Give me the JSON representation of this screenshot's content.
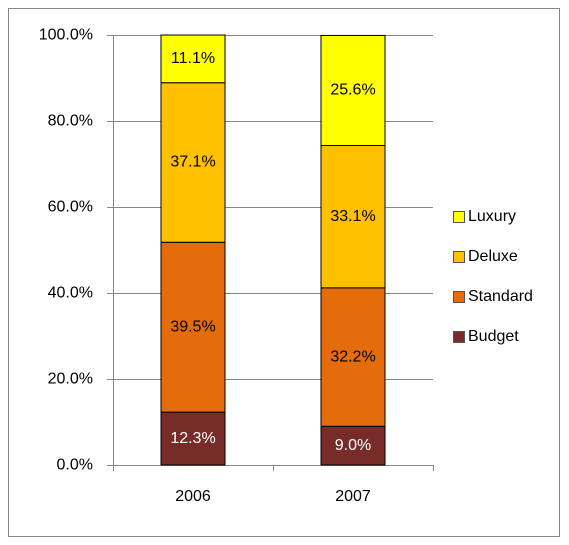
{
  "chart_data": {
    "type": "stacked-bar",
    "categories": [
      "2006",
      "2007"
    ],
    "series": [
      {
        "name": "Budget",
        "color": "#772c2a",
        "label_color": "#ffffff",
        "values": [
          12.3,
          9
        ],
        "value_labels": [
          "12.3%",
          "9.0%"
        ]
      },
      {
        "name": "Standard",
        "color": "#e46c0a",
        "label_color": "#000000",
        "values": [
          39.5,
          32.2
        ],
        "value_labels": [
          "39.5%",
          "32.2%"
        ]
      },
      {
        "name": "Deluxe",
        "color": "#ffc000",
        "label_color": "#000000",
        "values": [
          37.1,
          33.1
        ],
        "value_labels": [
          "37.1%",
          "33.1%"
        ]
      },
      {
        "name": "Luxury",
        "color": "#ffff00",
        "label_color": "#000000",
        "values": [
          11.1,
          25.6
        ],
        "value_labels": [
          "11.1%",
          "25.6%"
        ]
      }
    ],
    "ylim": [
      0,
      100
    ],
    "yticks": [
      {
        "value": 0,
        "label": "0.0%"
      },
      {
        "value": 20,
        "label": "20.0%"
      },
      {
        "value": 40,
        "label": "40.0%"
      },
      {
        "value": 60,
        "label": "60.0%"
      },
      {
        "value": 80,
        "label": "80.0%"
      },
      {
        "value": 100,
        "label": "100.0%"
      }
    ],
    "grid": true,
    "legend": "right"
  }
}
